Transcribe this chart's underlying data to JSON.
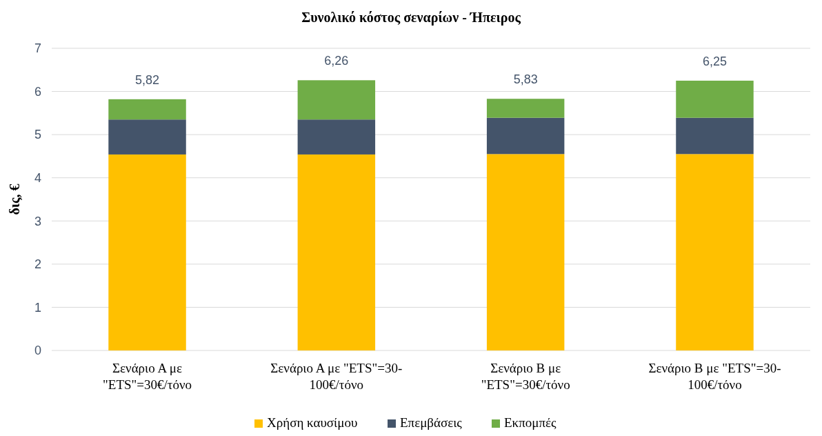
{
  "chart_data": {
    "type": "bar",
    "title": "Συνολικό κόστος σεναρίων - Ήπειρος",
    "ylabel": "δις, €",
    "categories": [
      "Σενάριο Α με \"ETS\"=30€/τόνο",
      "Σενάριο Α με \"ETS\"=30-100€/τόνο",
      "Σενάριο Β με \"ETS\"=30€/τόνο",
      "Σενάριο Β με \"ETS\"=30-100€/τόνο"
    ],
    "stacked": true,
    "series": [
      {
        "name": "Χρήση καυσίμου",
        "color": "#ffc000",
        "values": [
          4.54,
          4.54,
          4.55,
          4.55
        ]
      },
      {
        "name": "Επεμβάσεις",
        "color": "#44546a",
        "values": [
          0.81,
          0.81,
          0.84,
          0.84
        ]
      },
      {
        "name": "Εκπομπές",
        "color": "#70ad47",
        "values": [
          0.47,
          0.91,
          0.44,
          0.86
        ]
      }
    ],
    "totals": [
      "5,82",
      "6,26",
      "5,83",
      "6,25"
    ],
    "ylim": [
      0,
      7
    ],
    "yticks": [
      0,
      1,
      2,
      3,
      4,
      5,
      6,
      7
    ],
    "grid": "y",
    "legend": "bottom"
  }
}
